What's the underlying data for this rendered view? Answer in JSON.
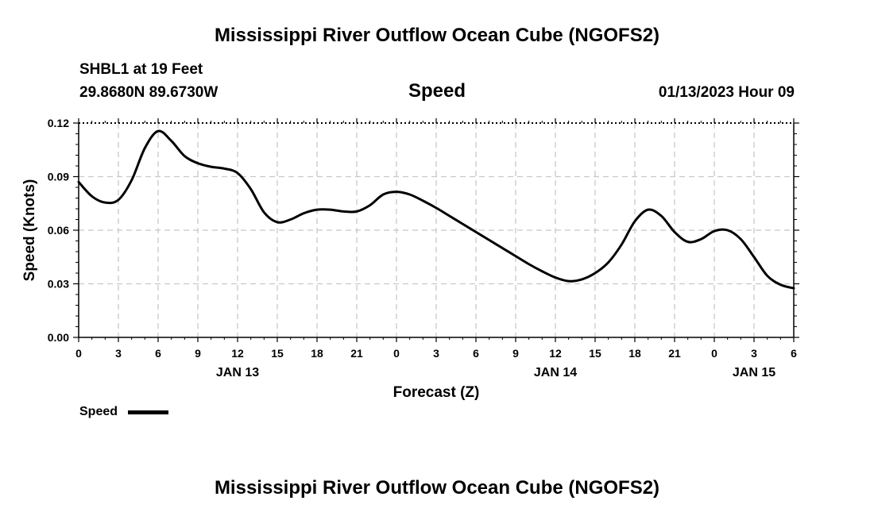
{
  "title": "Mississippi River Outflow Ocean Cube (NGOFS2)",
  "station": "SHBL1 at 19 Feet",
  "location": "29.8680N  89.6730W",
  "timestamp": "01/13/2023 Hour 09",
  "chart_data": {
    "type": "line",
    "title": "Speed",
    "xlabel": "Forecast (Z)",
    "ylabel": "Speed (Knots)",
    "ylim": [
      0,
      0.12
    ],
    "yticks": [
      "0.00",
      "0.03",
      "0.06",
      "0.09",
      "0.12"
    ],
    "xlim": [
      0,
      54
    ],
    "xticks": [
      "0",
      "3",
      "6",
      "9",
      "12",
      "15",
      "18",
      "21",
      "0",
      "3",
      "6",
      "9",
      "12",
      "15",
      "18",
      "21",
      "0",
      "3",
      "6"
    ],
    "date_labels": [
      {
        "label": "JAN 13",
        "at": 12
      },
      {
        "label": "JAN 14",
        "at": 36
      },
      {
        "label": "JAN 15",
        "at": 51
      }
    ],
    "grid": true,
    "legend": "bottom-left",
    "series": [
      {
        "name": "Speed",
        "color": "#000000",
        "x": [
          0,
          1,
          2,
          3,
          4,
          5,
          6,
          7,
          8,
          9,
          10,
          11,
          12,
          13,
          14,
          15,
          16,
          17,
          18,
          19,
          20,
          21,
          22,
          23,
          24,
          25,
          26,
          27,
          28,
          29,
          30,
          31,
          32,
          33,
          34,
          35,
          36,
          37,
          38,
          39,
          40,
          41,
          42,
          43,
          44,
          45,
          46,
          47,
          48,
          49,
          50,
          51,
          52,
          53,
          54
        ],
        "values": [
          0.087,
          0.079,
          0.0755,
          0.077,
          0.088,
          0.106,
          0.1155,
          0.11,
          0.1015,
          0.0975,
          0.0955,
          0.0945,
          0.092,
          0.083,
          0.07,
          0.0645,
          0.066,
          0.0695,
          0.0715,
          0.0715,
          0.0705,
          0.0705,
          0.074,
          0.08,
          0.0815,
          0.08,
          0.0765,
          0.0725,
          0.068,
          0.0635,
          0.059,
          0.0545,
          0.05,
          0.0455,
          0.041,
          0.037,
          0.0335,
          0.0315,
          0.0325,
          0.036,
          0.042,
          0.052,
          0.065,
          0.0715,
          0.068,
          0.059,
          0.0535,
          0.055,
          0.0595,
          0.06,
          0.055,
          0.045,
          0.0345,
          0.0295,
          0.0275
        ]
      }
    ]
  }
}
